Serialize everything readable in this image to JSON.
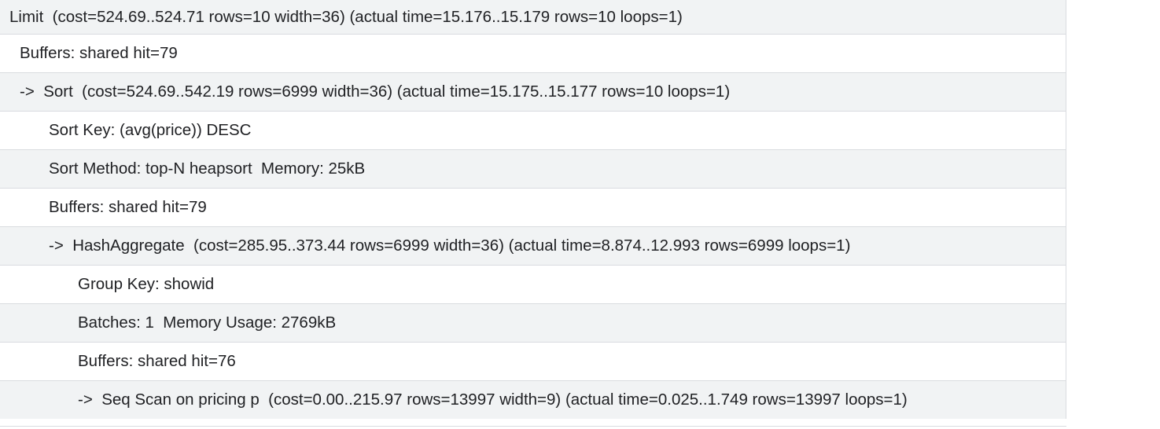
{
  "plan": {
    "rows": [
      {
        "text": "Limit  (cost=524.69..524.71 rows=10 width=36) (actual time=15.176..15.179 rows=10 loops=1)",
        "level": 0
      },
      {
        "text": "Buffers: shared hit=79",
        "level": 1
      },
      {
        "text": "->  Sort  (cost=524.69..542.19 rows=6999 width=36) (actual time=15.175..15.177 rows=10 loops=1)",
        "level": 1
      },
      {
        "text": "Sort Key: (avg(price)) DESC",
        "level": 2
      },
      {
        "text": "Sort Method: top-N heapsort  Memory: 25kB",
        "level": 2
      },
      {
        "text": "Buffers: shared hit=79",
        "level": 2
      },
      {
        "text": "->  HashAggregate  (cost=285.95..373.44 rows=6999 width=36) (actual time=8.874..12.993 rows=6999 loops=1)",
        "level": 2
      },
      {
        "text": "Group Key: showid",
        "level": 3
      },
      {
        "text": "Batches: 1  Memory Usage: 2769kB",
        "level": 3
      },
      {
        "text": "Buffers: shared hit=76",
        "level": 3
      },
      {
        "text": "->  Seq Scan on pricing p  (cost=0.00..215.97 rows=13997 width=9) (actual time=0.025..1.749 rows=13997 loops=1)",
        "level": 3
      }
    ]
  }
}
